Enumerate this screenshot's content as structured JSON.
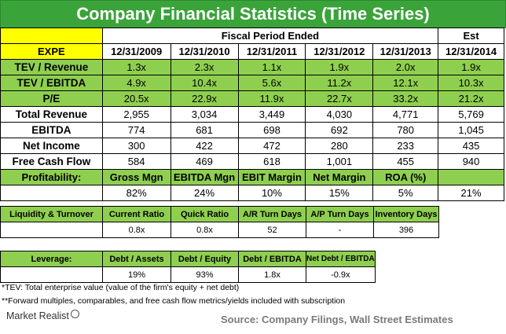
{
  "title": "Company Financial Statistics (Time Series)",
  "main": {
    "header_group": "Fiscal Period Ended",
    "header_est": "Est",
    "corner_label": "EXPE",
    "dates": [
      "12/31/2009",
      "12/31/2010",
      "12/31/2011",
      "12/31/2012",
      "12/31/2013",
      "12/31/2014"
    ],
    "multiple_rows": [
      {
        "label": "TEV / Revenue",
        "values": [
          "1.3x",
          "2.3x",
          "1.1x",
          "1.9x",
          "2.0x",
          "1.9x"
        ]
      },
      {
        "label": "TEV / EBITDA",
        "values": [
          "4.9x",
          "10.4x",
          "5.6x",
          "11.2x",
          "12.1x",
          "10.3x"
        ]
      },
      {
        "label": "P/E",
        "values": [
          "20.5x",
          "22.9x",
          "11.9x",
          "22.7x",
          "33.2x",
          "21.2x"
        ]
      }
    ],
    "value_rows": [
      {
        "label": "Total Revenue",
        "values": [
          "2,955",
          "3,034",
          "3,449",
          "4,030",
          "4,771",
          "5,769"
        ]
      },
      {
        "label": "EBITDA",
        "values": [
          "774",
          "681",
          "698",
          "692",
          "780",
          "1,045"
        ]
      },
      {
        "label": "Net Income",
        "values": [
          "300",
          "422",
          "472",
          "280",
          "233",
          "435"
        ]
      },
      {
        "label": "Free Cash Flow",
        "values": [
          "584",
          "469",
          "618",
          "1,001",
          "455",
          "940"
        ]
      }
    ]
  },
  "profitability": {
    "label": "Profitability:",
    "headers": [
      "Gross Mgn",
      "EBITDA Mgn",
      "EBIT Margin",
      "Net Margin",
      "ROA (%)",
      ""
    ],
    "values": [
      "82%",
      "24%",
      "10%",
      "15%",
      "5%",
      "21%"
    ]
  },
  "liquidity": {
    "label": "Liquidity & Turnover",
    "headers": [
      "Current Ratio",
      "Quick Ratio",
      "A/R Turn Days",
      "A/P Turn Days",
      "Inventory Days"
    ],
    "values": [
      "0.8x",
      "0.8x",
      "52",
      "-",
      "396"
    ]
  },
  "leverage": {
    "label": "Leverage:",
    "headers": [
      "Debt / Assets",
      "Debt / Equity",
      "Debt / EBITDA",
      "Net Debt / EBITDA"
    ],
    "values": [
      "19%",
      "93%",
      "1.8x",
      "-0.9x"
    ]
  },
  "footnotes": [
    "*TEV: Total enterprise value (value of the firm's equity + net debt)",
    "**Forward multiples, comparables, and free cash flow metrics/yields included with subscription"
  ],
  "brand": "Market Realist",
  "source": "Source: Company Filings, Wall Street Estimates",
  "colors": {
    "title_bg": "#3aa33a",
    "green_cell": "#8fcf4f",
    "yellow_cell": "#ffff00"
  }
}
